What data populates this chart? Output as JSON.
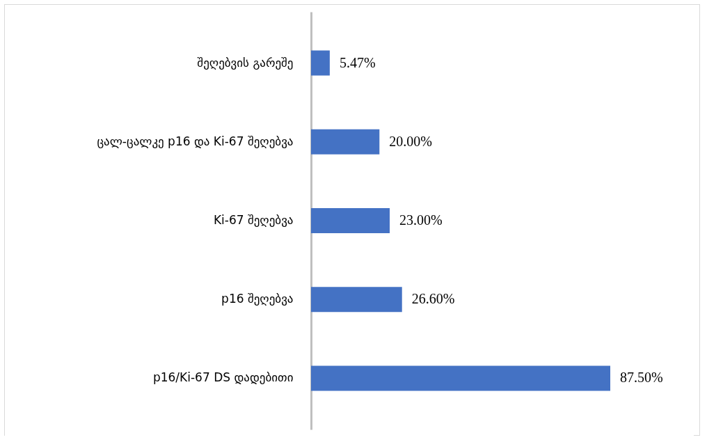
{
  "chart_data": {
    "type": "bar",
    "orientation": "horizontal",
    "categories": [
      "შეღებვის გარეშე",
      "ცალ-ცალკე  p16 და  Ki-67 შეღებვა",
      "Ki-67 შეღებვა",
      "p16 შეღებვა",
      "p16/Ki-67 DS დადებითი"
    ],
    "values": [
      5.47,
      20.0,
      23.0,
      26.6,
      87.5
    ],
    "value_labels": [
      "5.47%",
      "20.00%",
      "23.00%",
      "26.60%",
      "87.50%"
    ],
    "color": "#4472c4"
  }
}
